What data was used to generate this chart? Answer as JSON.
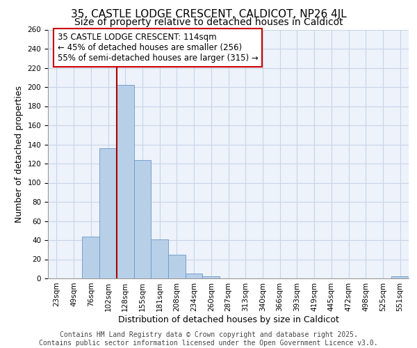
{
  "title_line1": "35, CASTLE LODGE CRESCENT, CALDICOT, NP26 4JL",
  "title_line2": "Size of property relative to detached houses in Caldicot",
  "xlabel": "Distribution of detached houses by size in Caldicot",
  "ylabel": "Number of detached properties",
  "categories": [
    "23sqm",
    "49sqm",
    "76sqm",
    "102sqm",
    "128sqm",
    "155sqm",
    "181sqm",
    "208sqm",
    "234sqm",
    "260sqm",
    "287sqm",
    "313sqm",
    "340sqm",
    "366sqm",
    "393sqm",
    "419sqm",
    "445sqm",
    "472sqm",
    "498sqm",
    "525sqm",
    "551sqm"
  ],
  "values": [
    0,
    0,
    44,
    136,
    202,
    124,
    41,
    25,
    5,
    2,
    0,
    0,
    0,
    0,
    0,
    0,
    0,
    0,
    0,
    0,
    2
  ],
  "bar_color": "#b8cfe8",
  "bar_edge_color": "#6699cc",
  "grid_color": "#c8d4e8",
  "background_color": "#eef2fa",
  "vline_x": 3.5,
  "vline_color": "#aa0000",
  "annotation_box_text": "35 CASTLE LODGE CRESCENT: 114sqm\n← 45% of detached houses are smaller (256)\n55% of semi-detached houses are larger (315) →",
  "annotation_box_color": "#cc0000",
  "annotation_box_facecolor": "white",
  "ylim": [
    0,
    260
  ],
  "yticks": [
    0,
    20,
    40,
    60,
    80,
    100,
    120,
    140,
    160,
    180,
    200,
    220,
    240,
    260
  ],
  "footer_line1": "Contains HM Land Registry data © Crown copyright and database right 2025.",
  "footer_line2": "Contains public sector information licensed under the Open Government Licence v3.0.",
  "title_fontsize": 11,
  "subtitle_fontsize": 10,
  "tick_fontsize": 7.5,
  "ylabel_fontsize": 9,
  "xlabel_fontsize": 9,
  "annotation_fontsize": 8.5,
  "footer_fontsize": 7.0
}
